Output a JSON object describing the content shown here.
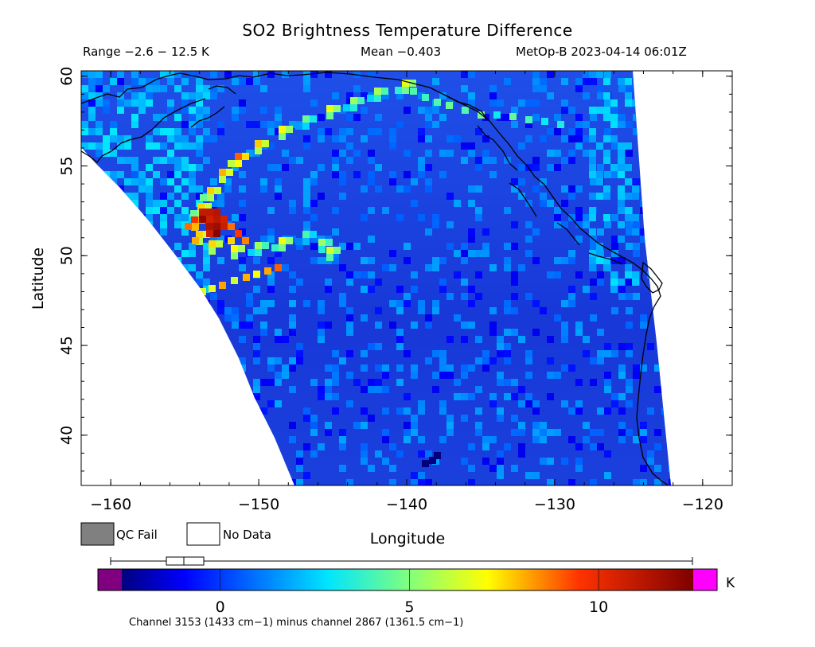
{
  "header": {
    "title": "SO2 Brightness Temperature Difference",
    "range": "Range −2.6 − 12.5 K",
    "mean": "Mean −0.403",
    "source": "MetOp-B 2023-04-14 06:01Z"
  },
  "map": {
    "xlabel": "Longitude",
    "ylabel": "Latitude",
    "xlim": [
      -162,
      -118
    ],
    "ylim": [
      37.2,
      60.3
    ],
    "x_ticks": [
      -160,
      -150,
      -140,
      -130,
      -120
    ],
    "x_tick_labels": [
      "−160",
      "−150",
      "−140",
      "−130",
      "−120"
    ],
    "y_ticks": [
      40,
      45,
      50,
      55,
      60
    ],
    "y_tick_labels": [
      "40",
      "45",
      "50",
      "55",
      "60"
    ],
    "background_value_K": -0.4
  },
  "legend": {
    "qc_fail_label": "QC Fail",
    "qc_fail_color": "#808080",
    "no_data_label": "No Data",
    "no_data_color": "#ffffff"
  },
  "colorbar": {
    "min": -2.6,
    "max": 12.5,
    "unit": "K",
    "tick_values": [
      0,
      5,
      10
    ],
    "tick_labels": [
      "0",
      "5",
      "10"
    ],
    "under_color": "#800080",
    "over_color": "#ff00ff",
    "note": "Channel 3153 (1433 cm−1) minus channel 2867 (1361.5 cm−1)"
  },
  "colors": {
    "coastline": "#000000",
    "ocean_base": "#1a3ee0"
  }
}
